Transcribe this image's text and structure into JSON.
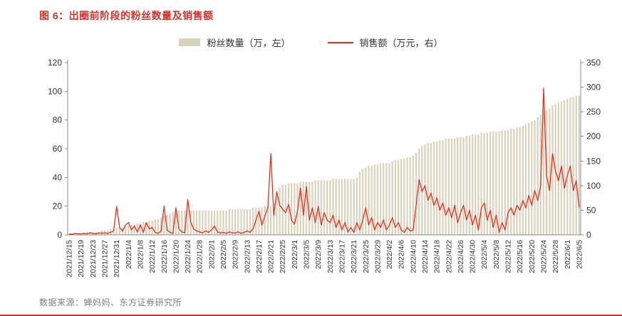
{
  "header": {
    "title": "图 6：出圈前阶段的粉丝数量及销售额"
  },
  "footer": {
    "source": "数据来源：蝉妈妈、东方证券研究所"
  },
  "theme": {
    "accent_red": "#d0342c",
    "axis_color": "#8c8c8c",
    "text_color": "#333333",
    "muted_text": "#7f7f7f"
  },
  "chart_data": {
    "type": "bar+line",
    "title": "图 6：出圈前阶段的粉丝数量及销售额",
    "legend_position": "top-center",
    "grid": false,
    "points_per_tick": 4,
    "x_tick_labels": [
      "2021/12/15",
      "2021/12/19",
      "2021/12/23",
      "2021/12/27",
      "2021/12/31",
      "2022/1/4",
      "2022/1/8",
      "2022/1/12",
      "2022/1/16",
      "2022/1/20",
      "2022/1/24",
      "2022/1/28",
      "2022/2/1",
      "2022/2/5",
      "2022/2/9",
      "2022/2/13",
      "2022/2/17",
      "2022/2/21",
      "2022/2/25",
      "2022/3/1",
      "2022/3/5",
      "2022/3/9",
      "2022/3/13",
      "2022/3/17",
      "2022/3/21",
      "2022/3/25",
      "2022/3/29",
      "2022/4/2",
      "2022/4/6",
      "2022/4/10",
      "2022/4/14",
      "2022/4/18",
      "2022/4/22",
      "2022/4/26",
      "2022/4/30",
      "2022/5/4",
      "2022/5/8",
      "2022/5/12",
      "2022/5/16",
      "2022/5/20",
      "2022/5/24",
      "2022/5/28",
      "2022/6/1",
      "2022/6/5"
    ],
    "left_axis": {
      "min": 0,
      "max": 120,
      "step": 20
    },
    "right_axis": {
      "min": 0,
      "max": 350,
      "step": 50
    },
    "series": [
      {
        "name": "粉丝数量（万，左）",
        "type": "bar",
        "axis": "left",
        "color": "#d9d2bc",
        "values": [
          1,
          1,
          1,
          1,
          1,
          1,
          2,
          2,
          2,
          2,
          2,
          3,
          3,
          3,
          4,
          4,
          5,
          5,
          5,
          6,
          6,
          7,
          7,
          8,
          8,
          9,
          9,
          10,
          10,
          11,
          11,
          12,
          13,
          14,
          15,
          16,
          17,
          17,
          17,
          17,
          17,
          17,
          17,
          17,
          17,
          17,
          17,
          17,
          17,
          17,
          17,
          17,
          17,
          17,
          18,
          18,
          18,
          18,
          18,
          18,
          18,
          18,
          19,
          19,
          19,
          19,
          20,
          20,
          20,
          22,
          28,
          33,
          35,
          35,
          36,
          36,
          36,
          36,
          37,
          37,
          37,
          37,
          37,
          38,
          38,
          38,
          38,
          38,
          38,
          39,
          39,
          39,
          39,
          39,
          39,
          39,
          39,
          40,
          44,
          46,
          47,
          48,
          48,
          49,
          49,
          50,
          50,
          50,
          50,
          51,
          52,
          52,
          53,
          53,
          54,
          54,
          55,
          57,
          60,
          62,
          63,
          64,
          64,
          65,
          65,
          66,
          66,
          67,
          67,
          67,
          67,
          68,
          68,
          68,
          69,
          69,
          70,
          70,
          70,
          71,
          71,
          71,
          72,
          72,
          72,
          72,
          73,
          73,
          73,
          74,
          74,
          75,
          75,
          76,
          77,
          78,
          79,
          80,
          82,
          84,
          86,
          87,
          88,
          90,
          91,
          92,
          93,
          94,
          95,
          96,
          96,
          97,
          97
        ]
      },
      {
        "name": "销售额（万元，右）",
        "type": "line",
        "axis": "right",
        "color": "#e0301e",
        "values": [
          2,
          1,
          3,
          2,
          2,
          3,
          2,
          4,
          3,
          2,
          4,
          3,
          4,
          3,
          5,
          8,
          58,
          15,
          8,
          20,
          25,
          10,
          18,
          6,
          20,
          5,
          25,
          12,
          15,
          5,
          3,
          8,
          58,
          10,
          5,
          3,
          55,
          12,
          6,
          4,
          72,
          25,
          12,
          8,
          6,
          4,
          8,
          5,
          10,
          18,
          6,
          4,
          5,
          3,
          6,
          4,
          4,
          6,
          3,
          5,
          8,
          5,
          12,
          30,
          48,
          20,
          38,
          55,
          165,
          40,
          88,
          60,
          52,
          45,
          62,
          30,
          22,
          48,
          95,
          40,
          98,
          30,
          55,
          25,
          58,
          20,
          45,
          30,
          25,
          40,
          15,
          30,
          10,
          25,
          6,
          15,
          5,
          25,
          10,
          30,
          55,
          20,
          35,
          10,
          25,
          15,
          30,
          10,
          20,
          35,
          15,
          25,
          10,
          5,
          15,
          8,
          10,
          60,
          112,
          88,
          100,
          70,
          85,
          60,
          75,
          50,
          65,
          40,
          55,
          35,
          60,
          25,
          45,
          60,
          30,
          50,
          20,
          40,
          10,
          55,
          65,
          30,
          50,
          15,
          40,
          5,
          25,
          10,
          45,
          55,
          40,
          60,
          50,
          70,
          55,
          80,
          60,
          90,
          70,
          100,
          298,
          120,
          90,
          165,
          130,
          110,
          140,
          95,
          120,
          140,
          90,
          110,
          55
        ]
      }
    ]
  }
}
